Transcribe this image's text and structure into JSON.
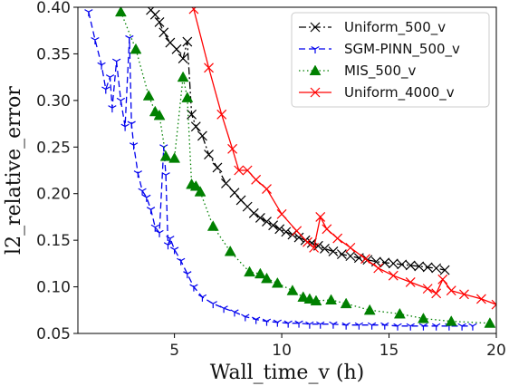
{
  "chart_data": {
    "type": "line",
    "title": "",
    "xlabel": "Wall_time_v (h)",
    "ylabel": "l2_relative_error",
    "xlim": [
      0.5,
      20
    ],
    "ylim": [
      0.05,
      0.4
    ],
    "xticks": [
      5,
      10,
      15,
      20
    ],
    "xtick_labels": [
      "5",
      "10",
      "15",
      "20"
    ],
    "yticks": [
      0.05,
      0.1,
      0.15,
      0.2,
      0.25,
      0.3,
      0.35,
      0.4
    ],
    "ytick_labels": [
      "0.05",
      "0.10",
      "0.15",
      "0.20",
      "0.25",
      "0.30",
      "0.35",
      "0.40"
    ],
    "grid": false,
    "legend_position": "top-right",
    "series": [
      {
        "name": "Uniform_500_v",
        "color": "#000000",
        "linestyle": "dashdot",
        "marker": "x",
        "x": [
          3.9,
          4.1,
          4.3,
          4.5,
          4.8,
          5.1,
          5.4,
          5.6,
          5.8,
          6.0,
          6.3,
          6.6,
          7.0,
          7.4,
          7.8,
          8.1,
          8.4,
          8.7,
          9.0,
          9.3,
          9.6,
          9.9,
          10.2,
          10.5,
          10.8,
          11.1,
          11.4,
          11.7,
          12.0,
          12.4,
          12.8,
          13.2,
          13.6,
          14.0,
          14.4,
          14.8,
          15.2,
          15.6,
          16.0,
          16.4,
          16.8,
          17.2,
          17.6
        ],
        "y": [
          0.397,
          0.392,
          0.384,
          0.373,
          0.362,
          0.355,
          0.345,
          0.363,
          0.285,
          0.272,
          0.262,
          0.242,
          0.228,
          0.211,
          0.201,
          0.193,
          0.186,
          0.179,
          0.174,
          0.17,
          0.166,
          0.162,
          0.159,
          0.156,
          0.153,
          0.15,
          0.147,
          0.144,
          0.141,
          0.138,
          0.135,
          0.133,
          0.131,
          0.129,
          0.127,
          0.126,
          0.125,
          0.124,
          0.123,
          0.122,
          0.121,
          0.12,
          0.118
        ]
      },
      {
        "name": "SGM-PINN_500_v",
        "color": "#0000ee",
        "linestyle": "dashed",
        "marker": "tri_down",
        "x": [
          1.0,
          1.3,
          1.6,
          1.8,
          2.0,
          2.1,
          2.3,
          2.5,
          2.7,
          2.9,
          3.0,
          3.1,
          3.3,
          3.5,
          3.7,
          3.9,
          4.1,
          4.3,
          4.5,
          4.6,
          4.7,
          4.8,
          5.0,
          5.3,
          5.6,
          5.9,
          6.3,
          6.8,
          7.3,
          7.8,
          8.3,
          8.8,
          9.3,
          9.8,
          10.3,
          10.8,
          11.3,
          11.8,
          12.4,
          13.0,
          13.6,
          14.2,
          14.8,
          15.4,
          16.0,
          16.6,
          17.2,
          17.8,
          18.4,
          18.9
        ],
        "y": [
          0.395,
          0.365,
          0.338,
          0.312,
          0.325,
          0.292,
          0.342,
          0.3,
          0.272,
          0.367,
          0.275,
          0.252,
          0.222,
          0.203,
          0.196,
          0.183,
          0.164,
          0.158,
          0.25,
          0.22,
          0.145,
          0.152,
          0.14,
          0.128,
          0.114,
          0.1,
          0.089,
          0.082,
          0.077,
          0.073,
          0.068,
          0.065,
          0.063,
          0.062,
          0.061,
          0.061,
          0.06,
          0.06,
          0.06,
          0.059,
          0.059,
          0.059,
          0.059,
          0.058,
          0.058,
          0.058,
          0.058,
          0.058,
          0.058,
          0.058
        ]
      },
      {
        "name": "MIS_500_v",
        "color": "#008000",
        "linestyle": "dotted",
        "marker": "triangle_up",
        "x": [
          2.5,
          3.2,
          3.8,
          4.1,
          4.3,
          4.6,
          5.0,
          5.4,
          5.6,
          5.8,
          6.0,
          6.2,
          6.8,
          7.6,
          8.5,
          9.0,
          9.3,
          9.8,
          10.5,
          11.0,
          11.3,
          11.6,
          12.3,
          13.0,
          14.1,
          15.5,
          16.6,
          17.9,
          19.7
        ],
        "y": [
          0.395,
          0.355,
          0.305,
          0.288,
          0.284,
          0.24,
          0.238,
          0.325,
          0.303,
          0.21,
          0.208,
          0.202,
          0.165,
          0.138,
          0.116,
          0.114,
          0.109,
          0.104,
          0.096,
          0.089,
          0.087,
          0.085,
          0.086,
          0.082,
          0.075,
          0.071,
          0.066,
          0.063,
          0.061
        ]
      },
      {
        "name": "Uniform_4000_v",
        "color": "#ff0000",
        "linestyle": "solid",
        "marker": "x",
        "x": [
          5.9,
          6.6,
          7.2,
          7.7,
          8.0,
          8.4,
          8.8,
          9.3,
          10.0,
          10.7,
          11.2,
          11.5,
          11.8,
          12.1,
          12.6,
          13.2,
          13.9,
          14.5,
          15.2,
          16.0,
          16.8,
          17.2,
          17.5,
          17.9,
          18.5,
          19.3,
          20.0
        ],
        "y": [
          0.398,
          0.335,
          0.285,
          0.248,
          0.225,
          0.225,
          0.215,
          0.205,
          0.178,
          0.16,
          0.148,
          0.142,
          0.175,
          0.162,
          0.152,
          0.142,
          0.13,
          0.12,
          0.112,
          0.105,
          0.098,
          0.093,
          0.108,
          0.096,
          0.092,
          0.087,
          0.081
        ]
      }
    ]
  }
}
